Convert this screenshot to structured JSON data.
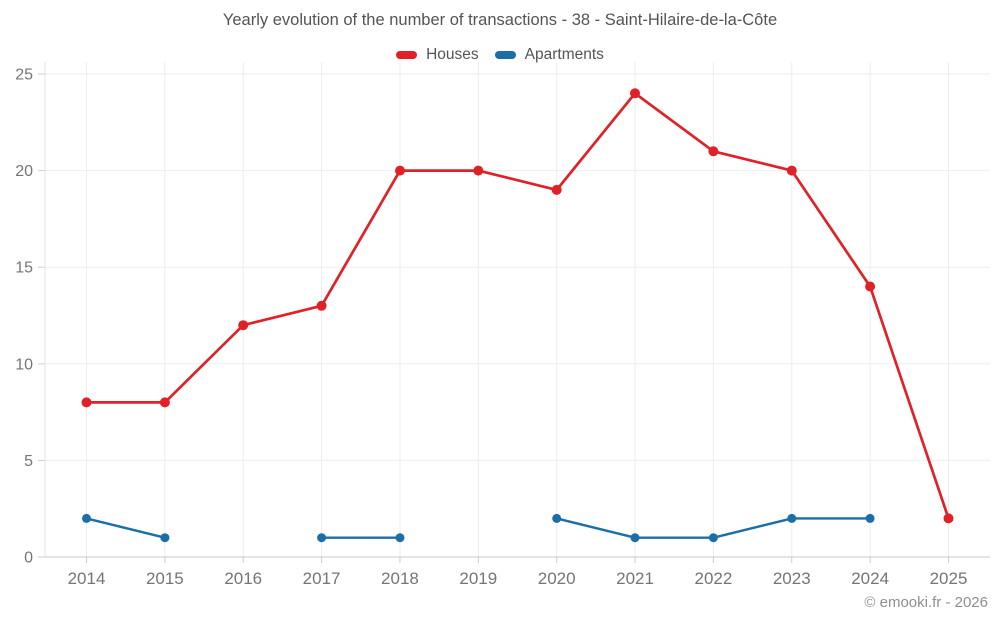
{
  "header": {
    "title": "Yearly evolution of the number of transactions - 38 - Saint-Hilaire-de-la-Côte"
  },
  "watermark": "© emooki.fr - 2026",
  "chart_data": {
    "type": "line",
    "title": "Yearly evolution of the number of transactions - 38 - Saint-Hilaire-de-la-Côte",
    "categories": [
      "2014",
      "2015",
      "2016",
      "2017",
      "2018",
      "2019",
      "2020",
      "2021",
      "2022",
      "2023",
      "2024",
      "2025"
    ],
    "series": [
      {
        "name": "Houses",
        "color": "#e02128",
        "marker_radius": 5,
        "line_width": 2.7,
        "values": [
          8,
          8,
          12,
          13,
          20,
          20,
          19,
          24,
          21,
          20,
          14,
          2
        ]
      },
      {
        "name": "Apartments",
        "color": "#1a6fa8",
        "marker_radius": 4.5,
        "line_width": 2.4,
        "values": [
          2,
          1,
          null,
          1,
          1,
          null,
          2,
          1,
          1,
          2,
          2,
          null
        ]
      }
    ],
    "xlabel": "",
    "ylabel": "",
    "ylim": [
      0,
      25
    ],
    "yticks": [
      0,
      5,
      10,
      15,
      20,
      25
    ],
    "grid": true,
    "legend_position": "top",
    "colors": {
      "gridline": "#ededed",
      "axis_line": "#c9c9c9",
      "plot_border": "#e3e3e3",
      "tick": "#cccccc",
      "axis_text": "#757575",
      "title_text": "#545454"
    }
  }
}
